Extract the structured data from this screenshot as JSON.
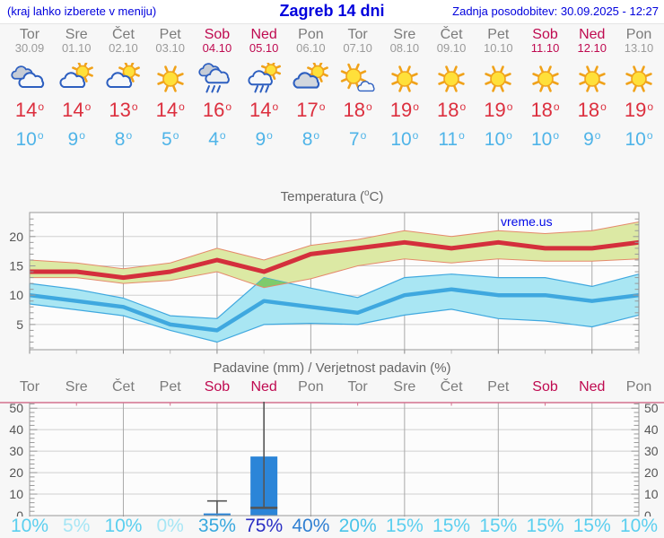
{
  "header": {
    "hint": "(kraj lahko izberete v meniju)",
    "title": "Zagreb 14 dni",
    "updated": "Zadnja posodobitev: 30.09.2025 - 12:27"
  },
  "misc": {
    "degree_mark": "o",
    "percent_suffix": "%"
  },
  "days": [
    {
      "name": "Tor",
      "date": "30.09",
      "weekend": false,
      "icon": "cloudy",
      "high": 14,
      "low": 10,
      "prob": 10
    },
    {
      "name": "Sre",
      "date": "01.10",
      "weekend": false,
      "icon": "sun-cloud",
      "high": 14,
      "low": 9,
      "prob": 5
    },
    {
      "name": "Čet",
      "date": "02.10",
      "weekend": false,
      "icon": "sun-cloud",
      "high": 13,
      "low": 8,
      "prob": 10
    },
    {
      "name": "Pet",
      "date": "03.10",
      "weekend": false,
      "icon": "sunny",
      "high": 14,
      "low": 5,
      "prob": 0
    },
    {
      "name": "Sob",
      "date": "04.10",
      "weekend": true,
      "icon": "rain",
      "high": 16,
      "low": 4,
      "prob": 35
    },
    {
      "name": "Ned",
      "date": "05.10",
      "weekend": true,
      "icon": "sun-rain",
      "high": 14,
      "low": 9,
      "prob": 75
    },
    {
      "name": "Pon",
      "date": "06.10",
      "weekend": false,
      "icon": "cloud-sun",
      "high": 17,
      "low": 8,
      "prob": 40
    },
    {
      "name": "Tor",
      "date": "07.10",
      "weekend": false,
      "icon": "sun-small-cloud",
      "high": 18,
      "low": 7,
      "prob": 20
    },
    {
      "name": "Sre",
      "date": "08.10",
      "weekend": false,
      "icon": "sunny",
      "high": 19,
      "low": 10,
      "prob": 15
    },
    {
      "name": "Čet",
      "date": "09.10",
      "weekend": false,
      "icon": "sunny",
      "high": 18,
      "low": 11,
      "prob": 15
    },
    {
      "name": "Pet",
      "date": "10.10",
      "weekend": false,
      "icon": "sunny",
      "high": 19,
      "low": 10,
      "prob": 15
    },
    {
      "name": "Sob",
      "date": "11.10",
      "weekend": true,
      "icon": "sunny",
      "high": 18,
      "low": 10,
      "prob": 15
    },
    {
      "name": "Ned",
      "date": "12.10",
      "weekend": true,
      "icon": "sunny",
      "high": 18,
      "low": 9,
      "prob": 15
    },
    {
      "name": "Pon",
      "date": "13.10",
      "weekend": false,
      "icon": "sunny",
      "high": 19,
      "low": 10,
      "prob": 10
    }
  ],
  "charts": {
    "temp": {
      "title_prefix": "Temperatura (",
      "title_sup": "o",
      "title_suffix": "C)",
      "watermark": "vreme.us"
    },
    "precip": {
      "title": "Padavine (mm) / Verjetnost padavin (%)"
    }
  },
  "chart_data": [
    {
      "type": "line",
      "title": "Temperatura (°C)",
      "categories": [
        "Tor 30.09",
        "Sre 01.10",
        "Čet 02.10",
        "Pet 03.10",
        "Sob 04.10",
        "Ned 05.10",
        "Pon 06.10",
        "Tor 07.10",
        "Sre 08.10",
        "Čet 09.10",
        "Pet 10.10",
        "Sob 11.10",
        "Ned 12.10",
        "Pon 13.10"
      ],
      "series": [
        {
          "name": "max temperature",
          "values": [
            14,
            14,
            13,
            14,
            16,
            14,
            17,
            18,
            19,
            18,
            19,
            18,
            18,
            19
          ]
        },
        {
          "name": "min temperature",
          "values": [
            10,
            9,
            8,
            5,
            4,
            9,
            8,
            7,
            10,
            11,
            10,
            10,
            9,
            10
          ]
        }
      ],
      "bands": [
        {
          "name": "max range",
          "upper": [
            16,
            15.5,
            14.5,
            15.5,
            18,
            16,
            18.5,
            19.5,
            21,
            20,
            21,
            20.5,
            21,
            22.5
          ],
          "lower": [
            13,
            13,
            12,
            12.5,
            14,
            11.3,
            12.8,
            15,
            16.2,
            15.5,
            16.2,
            15.8,
            15.8,
            16.2
          ]
        },
        {
          "name": "min range",
          "upper": [
            12,
            11,
            9.5,
            6.5,
            6,
            13,
            11.2,
            9.6,
            13,
            13.6,
            13,
            13,
            11.5,
            13.6
          ],
          "lower": [
            8.5,
            7.5,
            6.5,
            4,
            2,
            5,
            5.2,
            5,
            6.6,
            7.6,
            6,
            5.6,
            4.6,
            6.6
          ]
        }
      ],
      "ylim": [
        0.7,
        24.1
      ],
      "yticks": [
        5,
        10,
        15,
        20
      ],
      "grid": true,
      "watermark": "vreme.us"
    },
    {
      "type": "bar",
      "title": "Padavine (mm) / Verjetnost padavin (%)",
      "categories": [
        "Tor",
        "Sre",
        "Čet",
        "Pet",
        "Sob",
        "Ned",
        "Pon",
        "Tor",
        "Sre",
        "Čet",
        "Pet",
        "Sob",
        "Ned",
        "Pon"
      ],
      "values_mm": [
        0,
        0,
        0,
        0,
        1,
        27.5,
        0,
        0,
        0,
        0,
        0,
        0,
        0,
        0
      ],
      "whiskers": [
        {
          "index": 4,
          "from": 1,
          "to": 6.8,
          "cap": true
        },
        {
          "index": 5,
          "from": 3.6,
          "to": 53,
          "cap": false
        }
      ],
      "marks": [
        {
          "index": 5,
          "value": 3.6
        }
      ],
      "probabilities_pct": [
        10,
        5,
        10,
        0,
        35,
        75,
        40,
        20,
        15,
        15,
        15,
        15,
        15,
        10
      ],
      "ylim": [
        0,
        52.6
      ],
      "yticks": [
        0,
        10,
        20,
        30,
        40,
        50
      ],
      "grid": true
    }
  ],
  "colors": {
    "accent_blue": "#0000dd",
    "weekend": "#bf0a50",
    "day_gray": "#7b7b7b",
    "date_gray": "#9a9a9a",
    "high_red": "#dc2f3e",
    "low_blue": "#4fb4e8",
    "max_line": "#d42f3c",
    "max_band": "#dce9a4",
    "max_band_edge": "#e5896b",
    "min_line": "#3fa8df",
    "min_band": "#a9e6f3",
    "overlap_green": "#7ecb6c",
    "bar_blue": "#2b85d8",
    "whisker": "#555555",
    "crimson_rule": "#d4708e",
    "grid_h": "#d0d0d0",
    "grid_v": "#a9a9a9",
    "spine": "#999999",
    "axis_text": "#555555",
    "prob_colors": {
      "0": "#a6e6f5",
      "5": "#a6e6f5",
      "10": "#5bcfef",
      "15": "#5bcfef",
      "20": "#49c4e9",
      "35": "#38a8de",
      "40": "#2f7fd2",
      "75": "#2a2ec4"
    }
  }
}
